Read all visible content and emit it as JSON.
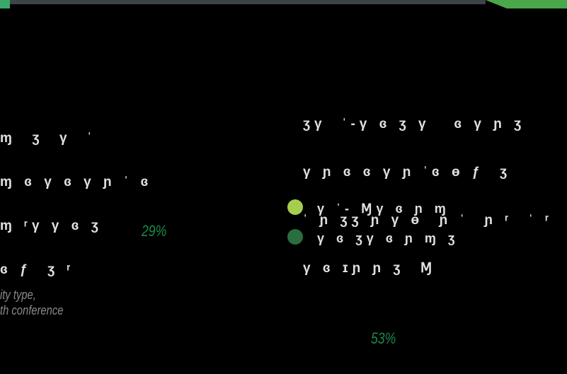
{
  "chart_data": {
    "type": "pie",
    "title": "",
    "data_labels": [
      "29%",
      "53%"
    ],
    "values": [
      29,
      53
    ],
    "legend": {
      "placement": "right",
      "entries": [
        {
          "label": "γ ˈ- Ɱγ ɞ ɲ ɱ",
          "color": "#a6ce4e"
        },
        {
          "label": "γ ɞ ʒγ ɞ ɲ ɱ ʒ",
          "color": "#2a6e3f"
        }
      ]
    },
    "fragments": {
      "left": [
        "ɱ  ʒ  γ  ˈ",
        "ɱ ɞ γ ɞ γ ɲ ˈ ɞ",
        "ɱ ʳγ γ ɞ ʒ",
        "ɞ ƒ  ʒ ʳ"
      ],
      "right": [
        "ʒγ  ˈ-γ ɞ ʒ γ   ɞ γ ɲ ʒ",
        "γ ɲ ɞ ɞ γ ɲ ˈɞ ɵ ƒ  ʒ",
        "ˈ ɲ ʒʒ ɲ γ ɵ  ɲ ˈ  ɲ ʳ  ˈ ʳ",
        "γ ɞ ɪɲ ɲ ʒ  Ɱ"
      ],
      "note": [
        "ity type,",
        "th conference"
      ]
    },
    "colors": {
      "background": "#000000",
      "accent": "#1b8a4a",
      "light_green": "#a6ce4e",
      "dark_green": "#2a6e3f"
    }
  }
}
